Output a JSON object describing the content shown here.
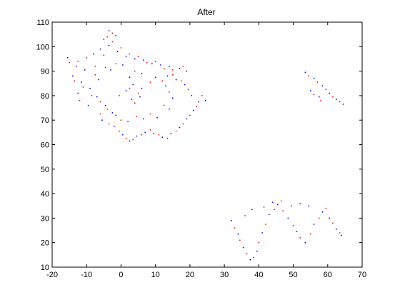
{
  "chart_data": {
    "type": "scatter",
    "title": "After",
    "xlabel": "",
    "ylabel": "",
    "xlim": [
      -20,
      70
    ],
    "ylim": [
      10,
      110
    ],
    "xticks": [
      -20,
      -10,
      0,
      10,
      20,
      30,
      40,
      50,
      60,
      70
    ],
    "yticks": [
      10,
      20,
      30,
      40,
      50,
      60,
      70,
      80,
      90,
      100,
      110
    ],
    "xtick_labels": [
      "-20",
      "-10",
      "0",
      "10",
      "20",
      "30",
      "40",
      "50",
      "60",
      "70"
    ],
    "ytick_labels": [
      "10",
      "20",
      "30",
      "40",
      "50",
      "60",
      "70",
      "80",
      "90",
      "100",
      "110"
    ],
    "grid": false,
    "marker": "dot",
    "colors": [
      "#0000ff",
      "#ff0000"
    ],
    "series": [
      {
        "values": [
          [
            -15.5,
            95.5
          ],
          [
            -13.0,
            92.0
          ],
          [
            -10.5,
            90.5
          ],
          [
            -8.0,
            97.0
          ],
          [
            -6.0,
            99.0
          ],
          [
            -3.5,
            100.5
          ],
          [
            -1.0,
            98.0
          ],
          [
            1.5,
            96.0
          ],
          [
            4.0,
            95.0
          ],
          [
            6.5,
            94.5
          ],
          [
            9.0,
            93.0
          ],
          [
            11.5,
            92.5
          ],
          [
            14.0,
            92.0
          ],
          [
            17.0,
            91.0
          ],
          [
            19.0,
            90.0
          ],
          [
            -14.0,
            88.0
          ],
          [
            -11.5,
            85.5
          ],
          [
            -9.0,
            83.0
          ],
          [
            -7.0,
            79.5
          ],
          [
            -4.5,
            76.0
          ],
          [
            -2.5,
            73.0
          ],
          [
            -5.5,
            70.0
          ],
          [
            -2.0,
            67.5
          ],
          [
            0.5,
            64.0
          ],
          [
            2.5,
            61.5
          ],
          [
            4.5,
            63.5
          ],
          [
            7.0,
            65.0
          ],
          [
            9.5,
            64.5
          ],
          [
            12.0,
            63.0
          ],
          [
            14.5,
            64.5
          ],
          [
            17.0,
            67.0
          ],
          [
            19.0,
            70.5
          ],
          [
            21.0,
            74.0
          ],
          [
            22.5,
            77.5
          ],
          [
            24.5,
            78.0
          ],
          [
            20.5,
            80.0
          ],
          [
            18.5,
            84.5
          ],
          [
            16.0,
            86.5
          ],
          [
            13.5,
            88.0
          ],
          [
            -12.5,
            81.0
          ],
          [
            -9.5,
            76.0
          ],
          [
            -6.5,
            86.5
          ],
          [
            -3.0,
            90.5
          ],
          [
            0.5,
            92.5
          ],
          [
            2.5,
            87.5
          ],
          [
            6.0,
            89.0
          ],
          [
            10.0,
            87.5
          ],
          [
            13.0,
            84.0
          ],
          [
            15.0,
            79.0
          ],
          [
            14.0,
            74.5
          ],
          [
            10.5,
            71.0
          ],
          [
            6.5,
            70.5
          ],
          [
            2.0,
            69.5
          ],
          [
            -1.5,
            72.0
          ],
          [
            1.5,
            82.0
          ],
          [
            3.5,
            84.5
          ],
          [
            6.0,
            83.0
          ],
          [
            5.5,
            79.5
          ],
          [
            3.0,
            78.5
          ],
          [
            -3.5,
            106.5
          ],
          [
            -1.5,
            104.5
          ],
          [
            -5.0,
            103.0
          ],
          [
            53.5,
            89.5
          ],
          [
            56.0,
            87.0
          ],
          [
            58.5,
            84.0
          ],
          [
            60.5,
            81.0
          ],
          [
            62.5,
            78.5
          ],
          [
            64.5,
            76.5
          ],
          [
            55.0,
            82.0
          ],
          [
            57.5,
            79.5
          ],
          [
            32.0,
            29.0
          ],
          [
            34.0,
            23.5
          ],
          [
            35.5,
            18.0
          ],
          [
            37.5,
            13.0
          ],
          [
            39.5,
            16.5
          ],
          [
            41.0,
            24.0
          ],
          [
            43.0,
            31.5
          ],
          [
            45.5,
            35.5
          ],
          [
            48.5,
            30.0
          ],
          [
            51.0,
            24.5
          ],
          [
            53.5,
            20.0
          ],
          [
            56.0,
            27.5
          ],
          [
            58.5,
            32.5
          ],
          [
            60.5,
            30.0
          ],
          [
            62.5,
            25.5
          ],
          [
            64.0,
            23.0
          ],
          [
            44.0,
            36.5
          ],
          [
            49.5,
            35.0
          ],
          [
            54.5,
            35.0
          ],
          [
            38.0,
            33.5
          ]
        ]
      },
      {
        "values": [
          [
            -15.0,
            93.5
          ],
          [
            -12.5,
            94.0
          ],
          [
            -10.0,
            95.5
          ],
          [
            -7.5,
            92.0
          ],
          [
            -5.0,
            96.5
          ],
          [
            -2.5,
            102.0
          ],
          [
            0.0,
            99.5
          ],
          [
            2.5,
            97.0
          ],
          [
            5.0,
            96.0
          ],
          [
            7.5,
            93.5
          ],
          [
            10.0,
            94.0
          ],
          [
            12.5,
            91.0
          ],
          [
            15.0,
            90.5
          ],
          [
            18.0,
            92.0
          ],
          [
            -13.5,
            86.0
          ],
          [
            -11.0,
            83.5
          ],
          [
            -8.5,
            80.0
          ],
          [
            -6.0,
            77.5
          ],
          [
            -4.0,
            74.5
          ],
          [
            -6.0,
            72.5
          ],
          [
            -3.5,
            68.5
          ],
          [
            -0.5,
            65.5
          ],
          [
            1.5,
            62.5
          ],
          [
            3.5,
            62.0
          ],
          [
            6.0,
            64.0
          ],
          [
            8.5,
            66.0
          ],
          [
            11.0,
            64.0
          ],
          [
            13.5,
            62.5
          ],
          [
            16.0,
            65.5
          ],
          [
            18.0,
            68.5
          ],
          [
            20.0,
            72.0
          ],
          [
            22.0,
            75.5
          ],
          [
            23.5,
            80.0
          ],
          [
            19.5,
            82.5
          ],
          [
            17.5,
            86.0
          ],
          [
            15.0,
            88.5
          ],
          [
            -12.0,
            78.0
          ],
          [
            -7.5,
            88.5
          ],
          [
            -4.5,
            91.5
          ],
          [
            -1.5,
            93.0
          ],
          [
            4.0,
            90.0
          ],
          [
            8.5,
            85.5
          ],
          [
            12.0,
            86.0
          ],
          [
            14.0,
            81.5
          ],
          [
            12.5,
            76.0
          ],
          [
            8.5,
            72.5
          ],
          [
            4.5,
            71.5
          ],
          [
            0.0,
            70.0
          ],
          [
            -0.5,
            80.0
          ],
          [
            2.5,
            83.0
          ],
          [
            5.0,
            81.0
          ],
          [
            4.0,
            77.0
          ],
          [
            -2.5,
            105.5
          ],
          [
            -4.0,
            104.0
          ],
          [
            54.5,
            88.0
          ],
          [
            57.0,
            85.5
          ],
          [
            59.5,
            82.5
          ],
          [
            61.5,
            79.5
          ],
          [
            63.5,
            77.5
          ],
          [
            56.0,
            80.5
          ],
          [
            58.0,
            78.0
          ],
          [
            33.0,
            26.0
          ],
          [
            34.5,
            21.0
          ],
          [
            36.5,
            15.5
          ],
          [
            38.5,
            14.0
          ],
          [
            40.0,
            20.0
          ],
          [
            42.0,
            27.5
          ],
          [
            44.5,
            33.5
          ],
          [
            47.0,
            33.0
          ],
          [
            50.0,
            27.0
          ],
          [
            52.0,
            22.0
          ],
          [
            55.0,
            23.5
          ],
          [
            57.5,
            30.0
          ],
          [
            59.5,
            34.0
          ],
          [
            61.5,
            28.0
          ],
          [
            63.5,
            24.0
          ],
          [
            46.5,
            37.0
          ],
          [
            52.0,
            36.0
          ],
          [
            36.0,
            31.0
          ],
          [
            41.5,
            34.5
          ]
        ]
      }
    ]
  }
}
